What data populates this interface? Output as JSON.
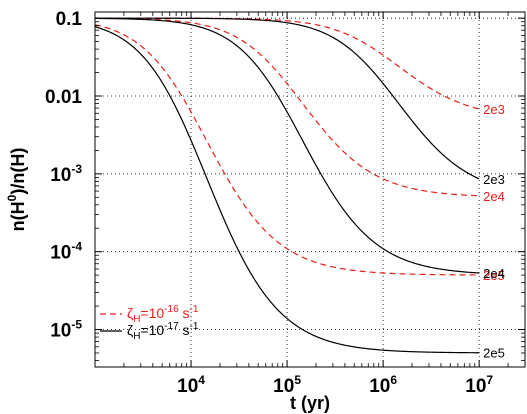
{
  "chart_data": {
    "type": "line",
    "xlabel": "t (yr)",
    "ylabel_parts": {
      "base": "n(H",
      "sup": "0",
      "rest": ")/n(H)"
    },
    "xscale": "log",
    "yscale": "log",
    "xlim": [
      1000,
      30000000
    ],
    "ylim": [
      3.3e-06,
      0.12
    ],
    "grid": true,
    "x_ticks": [
      {
        "value": 10000,
        "base": "10",
        "exp": "4"
      },
      {
        "value": 100000,
        "base": "10",
        "exp": "5"
      },
      {
        "value": 1000000,
        "base": "10",
        "exp": "6"
      },
      {
        "value": 10000000,
        "base": "10",
        "exp": "7"
      }
    ],
    "y_ticks": [
      {
        "value": 0.1,
        "text": "0.1"
      },
      {
        "value": 0.01,
        "text": "0.01"
      },
      {
        "value": 0.001,
        "base": "10",
        "exp": "-3"
      },
      {
        "value": 0.0001,
        "base": "10",
        "exp": "-4"
      },
      {
        "value": 1e-05,
        "base": "10",
        "exp": "-5"
      }
    ],
    "series": [
      {
        "zeta": "1e-16",
        "color": "#e8201a",
        "dash": "dashed",
        "label": "2e3",
        "eq": 0.005,
        "tmid": 1150000,
        "steep": 2.6
      },
      {
        "zeta": "1e-16",
        "color": "#e8201a",
        "dash": "dashed",
        "label": "2e4",
        "eq": 0.0005,
        "tmid": 115000,
        "steep": 2.6
      },
      {
        "zeta": "1e-16",
        "color": "#e8201a",
        "dash": "dashed",
        "label": "2e5",
        "eq": 5e-05,
        "tmid": 11500,
        "steep": 2.6
      },
      {
        "zeta": "1e-17",
        "color": "#000000",
        "dash": "solid",
        "label": "2e3",
        "eq": 0.0005,
        "tmid": 1150000,
        "steep": 2.6
      },
      {
        "zeta": "1e-17",
        "color": "#000000",
        "dash": "solid",
        "label": "2e4",
        "eq": 5e-05,
        "tmid": 115000,
        "steep": 2.6
      },
      {
        "zeta": "1e-17",
        "color": "#000000",
        "dash": "solid",
        "label": "2e5",
        "eq": 5e-06,
        "tmid": 11500,
        "steep": 2.6
      }
    ],
    "legend": {
      "placement": "bottom-left",
      "entries": [
        {
          "color": "#e8201a",
          "dash": "dashed",
          "sym": "ζ",
          "sub": "H",
          "eq": "=10",
          "exp": "-16",
          "unit": " s",
          "unitexp": "-1"
        },
        {
          "color": "#000000",
          "dash": "solid",
          "sym": "ζ",
          "sub": "H",
          "eq": "=10",
          "exp": "-17",
          "unit": " s",
          "unitexp": "-1"
        }
      ]
    }
  }
}
